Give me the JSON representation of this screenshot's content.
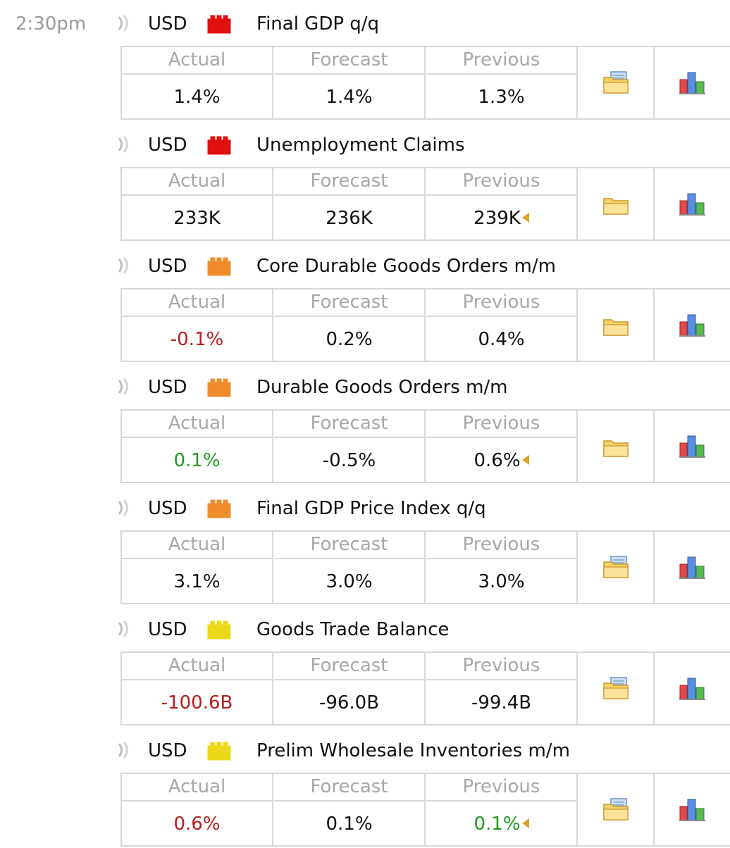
{
  "time": "2:30pm",
  "labels": {
    "actual": "Actual",
    "forecast": "Forecast",
    "previous": "Previous"
  },
  "impact_colors": {
    "high": "#e01010",
    "medium": "#ee8c2c",
    "low": "#ecd818"
  },
  "value_colors": {
    "worse": "#b81c1c",
    "better": "#1f9a1f",
    "neutral": "#111111"
  },
  "events": [
    {
      "currency": "USD",
      "impact": "high",
      "title": "Final GDP q/q",
      "actual": "1.4%",
      "actual_status": "neutral",
      "forecast": "1.4%",
      "previous": "1.3%",
      "previous_status": "neutral",
      "previous_revised": false,
      "detail_icon": "folder-detail-icon"
    },
    {
      "currency": "USD",
      "impact": "high",
      "title": "Unemployment Claims",
      "actual": "233K",
      "actual_status": "neutral",
      "forecast": "236K",
      "previous": "239K",
      "previous_status": "neutral",
      "previous_revised": true,
      "detail_icon": "folder-icon"
    },
    {
      "currency": "USD",
      "impact": "medium",
      "title": "Core Durable Goods Orders m/m",
      "actual": "-0.1%",
      "actual_status": "worse",
      "forecast": "0.2%",
      "previous": "0.4%",
      "previous_status": "neutral",
      "previous_revised": false,
      "detail_icon": "folder-icon"
    },
    {
      "currency": "USD",
      "impact": "medium",
      "title": "Durable Goods Orders m/m",
      "actual": "0.1%",
      "actual_status": "better",
      "forecast": "-0.5%",
      "previous": "0.6%",
      "previous_status": "neutral",
      "previous_revised": true,
      "detail_icon": "folder-icon"
    },
    {
      "currency": "USD",
      "impact": "medium",
      "title": "Final GDP Price Index q/q",
      "actual": "3.1%",
      "actual_status": "neutral",
      "forecast": "3.0%",
      "previous": "3.0%",
      "previous_status": "neutral",
      "previous_revised": false,
      "detail_icon": "folder-detail-icon"
    },
    {
      "currency": "USD",
      "impact": "low",
      "title": "Goods Trade Balance",
      "actual": "-100.6B",
      "actual_status": "worse",
      "forecast": "-96.0B",
      "previous": "-99.4B",
      "previous_status": "neutral",
      "previous_revised": false,
      "detail_icon": "folder-detail-icon"
    },
    {
      "currency": "USD",
      "impact": "low",
      "title": "Prelim Wholesale Inventories m/m",
      "actual": "0.6%",
      "actual_status": "worse",
      "forecast": "0.1%",
      "previous": "0.1%",
      "previous_status": "better",
      "previous_revised": true,
      "detail_icon": "folder-detail-icon"
    }
  ]
}
